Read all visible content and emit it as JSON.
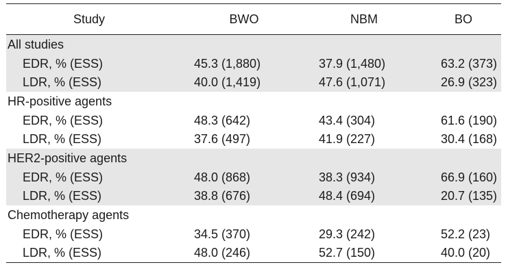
{
  "header": {
    "study": "Study",
    "bwo": "BWO",
    "nbm": "NBM",
    "bo": "BO"
  },
  "groups": [
    {
      "label": "All studies",
      "rows": [
        {
          "label": "EDR, % (ESS)",
          "bwo": "45.3 (1,880)",
          "nbm": "37.9 (1,480)",
          "bo": "63.2 (373)"
        },
        {
          "label": "LDR, % (ESS)",
          "bwo": "40.0 (1,419)",
          "nbm": "47.6 (1,071)",
          "bo": "26.9 (323)"
        }
      ]
    },
    {
      "label": "HR-positive agents",
      "rows": [
        {
          "label": "EDR, % (ESS)",
          "bwo": "48.3 (642)",
          "nbm": "43.4 (304)",
          "bo": "61.6 (190)"
        },
        {
          "label": "LDR, % (ESS)",
          "bwo": "37.6 (497)",
          "nbm": "41.9 (227)",
          "bo": "30.4 (168)"
        }
      ]
    },
    {
      "label": "HER2-positive agents",
      "rows": [
        {
          "label": "EDR, % (ESS)",
          "bwo": "48.0 (868)",
          "nbm": "38.3 (934)",
          "bo": "66.9 (160)"
        },
        {
          "label": "LDR, % (ESS)",
          "bwo": "38.8 (676)",
          "nbm": "48.4 (694)",
          "bo": "20.7 (135)"
        }
      ]
    },
    {
      "label": "Chemotherapy agents",
      "rows": [
        {
          "label": "EDR, % (ESS)",
          "bwo": "34.5 (370)",
          "nbm": "29.3 (242)",
          "bo": "52.2 (23)"
        },
        {
          "label": "LDR, % (ESS)",
          "bwo": "48.0 (246)",
          "nbm": "52.7 (150)",
          "bo": "40.0 (20)"
        }
      ]
    }
  ]
}
